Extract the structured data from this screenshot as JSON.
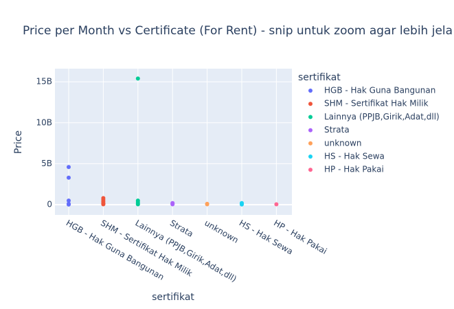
{
  "chart_data": {
    "type": "strip",
    "title": "Price per Month vs Certificate (For Rent) - snip untuk zoom agar lebih jela",
    "x_label": "sertifikat",
    "y_label": "Price",
    "legend_title": "sertifikat",
    "categories": [
      "HGB - Hak Guna Bangunan",
      "SHM - Sertifikat Hak Milik",
      "Lainnya (PPJB,Girik,Adat,dll)",
      "Strata",
      "unknown",
      "HS - Hak Sewa",
      "HP - Hak Pakai"
    ],
    "ylim": [
      -1250000000,
      16600000000
    ],
    "yticks": [
      0,
      {
        "value": 5000000000,
        "label": "5B"
      },
      {
        "value": 10000000000,
        "label": "10B"
      },
      {
        "value": 15000000000,
        "label": "15B"
      }
    ],
    "grid": true,
    "legend": "right",
    "series": [
      {
        "name": "HGB - Hak Guna Bangunan",
        "color": "#636efa",
        "values": [
          4600000000,
          3300000000,
          500000000,
          100000000,
          50000000,
          20000000
        ]
      },
      {
        "name": "SHM - Sertifikat Hak Milik",
        "color": "#EF553B",
        "values": [
          800000000,
          600000000,
          400000000,
          200000000,
          100000000,
          50000000
        ]
      },
      {
        "name": "Lainnya (PPJB,Girik,Adat,dll)",
        "color": "#00cc96",
        "values": [
          15400000000,
          500000000,
          300000000,
          100000000,
          50000000
        ]
      },
      {
        "name": "Strata",
        "color": "#ab63fa",
        "values": [
          200000000,
          100000000,
          50000000
        ]
      },
      {
        "name": "unknown",
        "color": "#FFA15A",
        "values": [
          100000000,
          50000000
        ]
      },
      {
        "name": "HS - Hak Sewa",
        "color": "#19d3f3",
        "values": [
          200000000,
          100000000,
          30000000
        ]
      },
      {
        "name": "HP - Hak Pakai",
        "color": "#FF6692",
        "values": [
          50000000
        ]
      }
    ]
  }
}
